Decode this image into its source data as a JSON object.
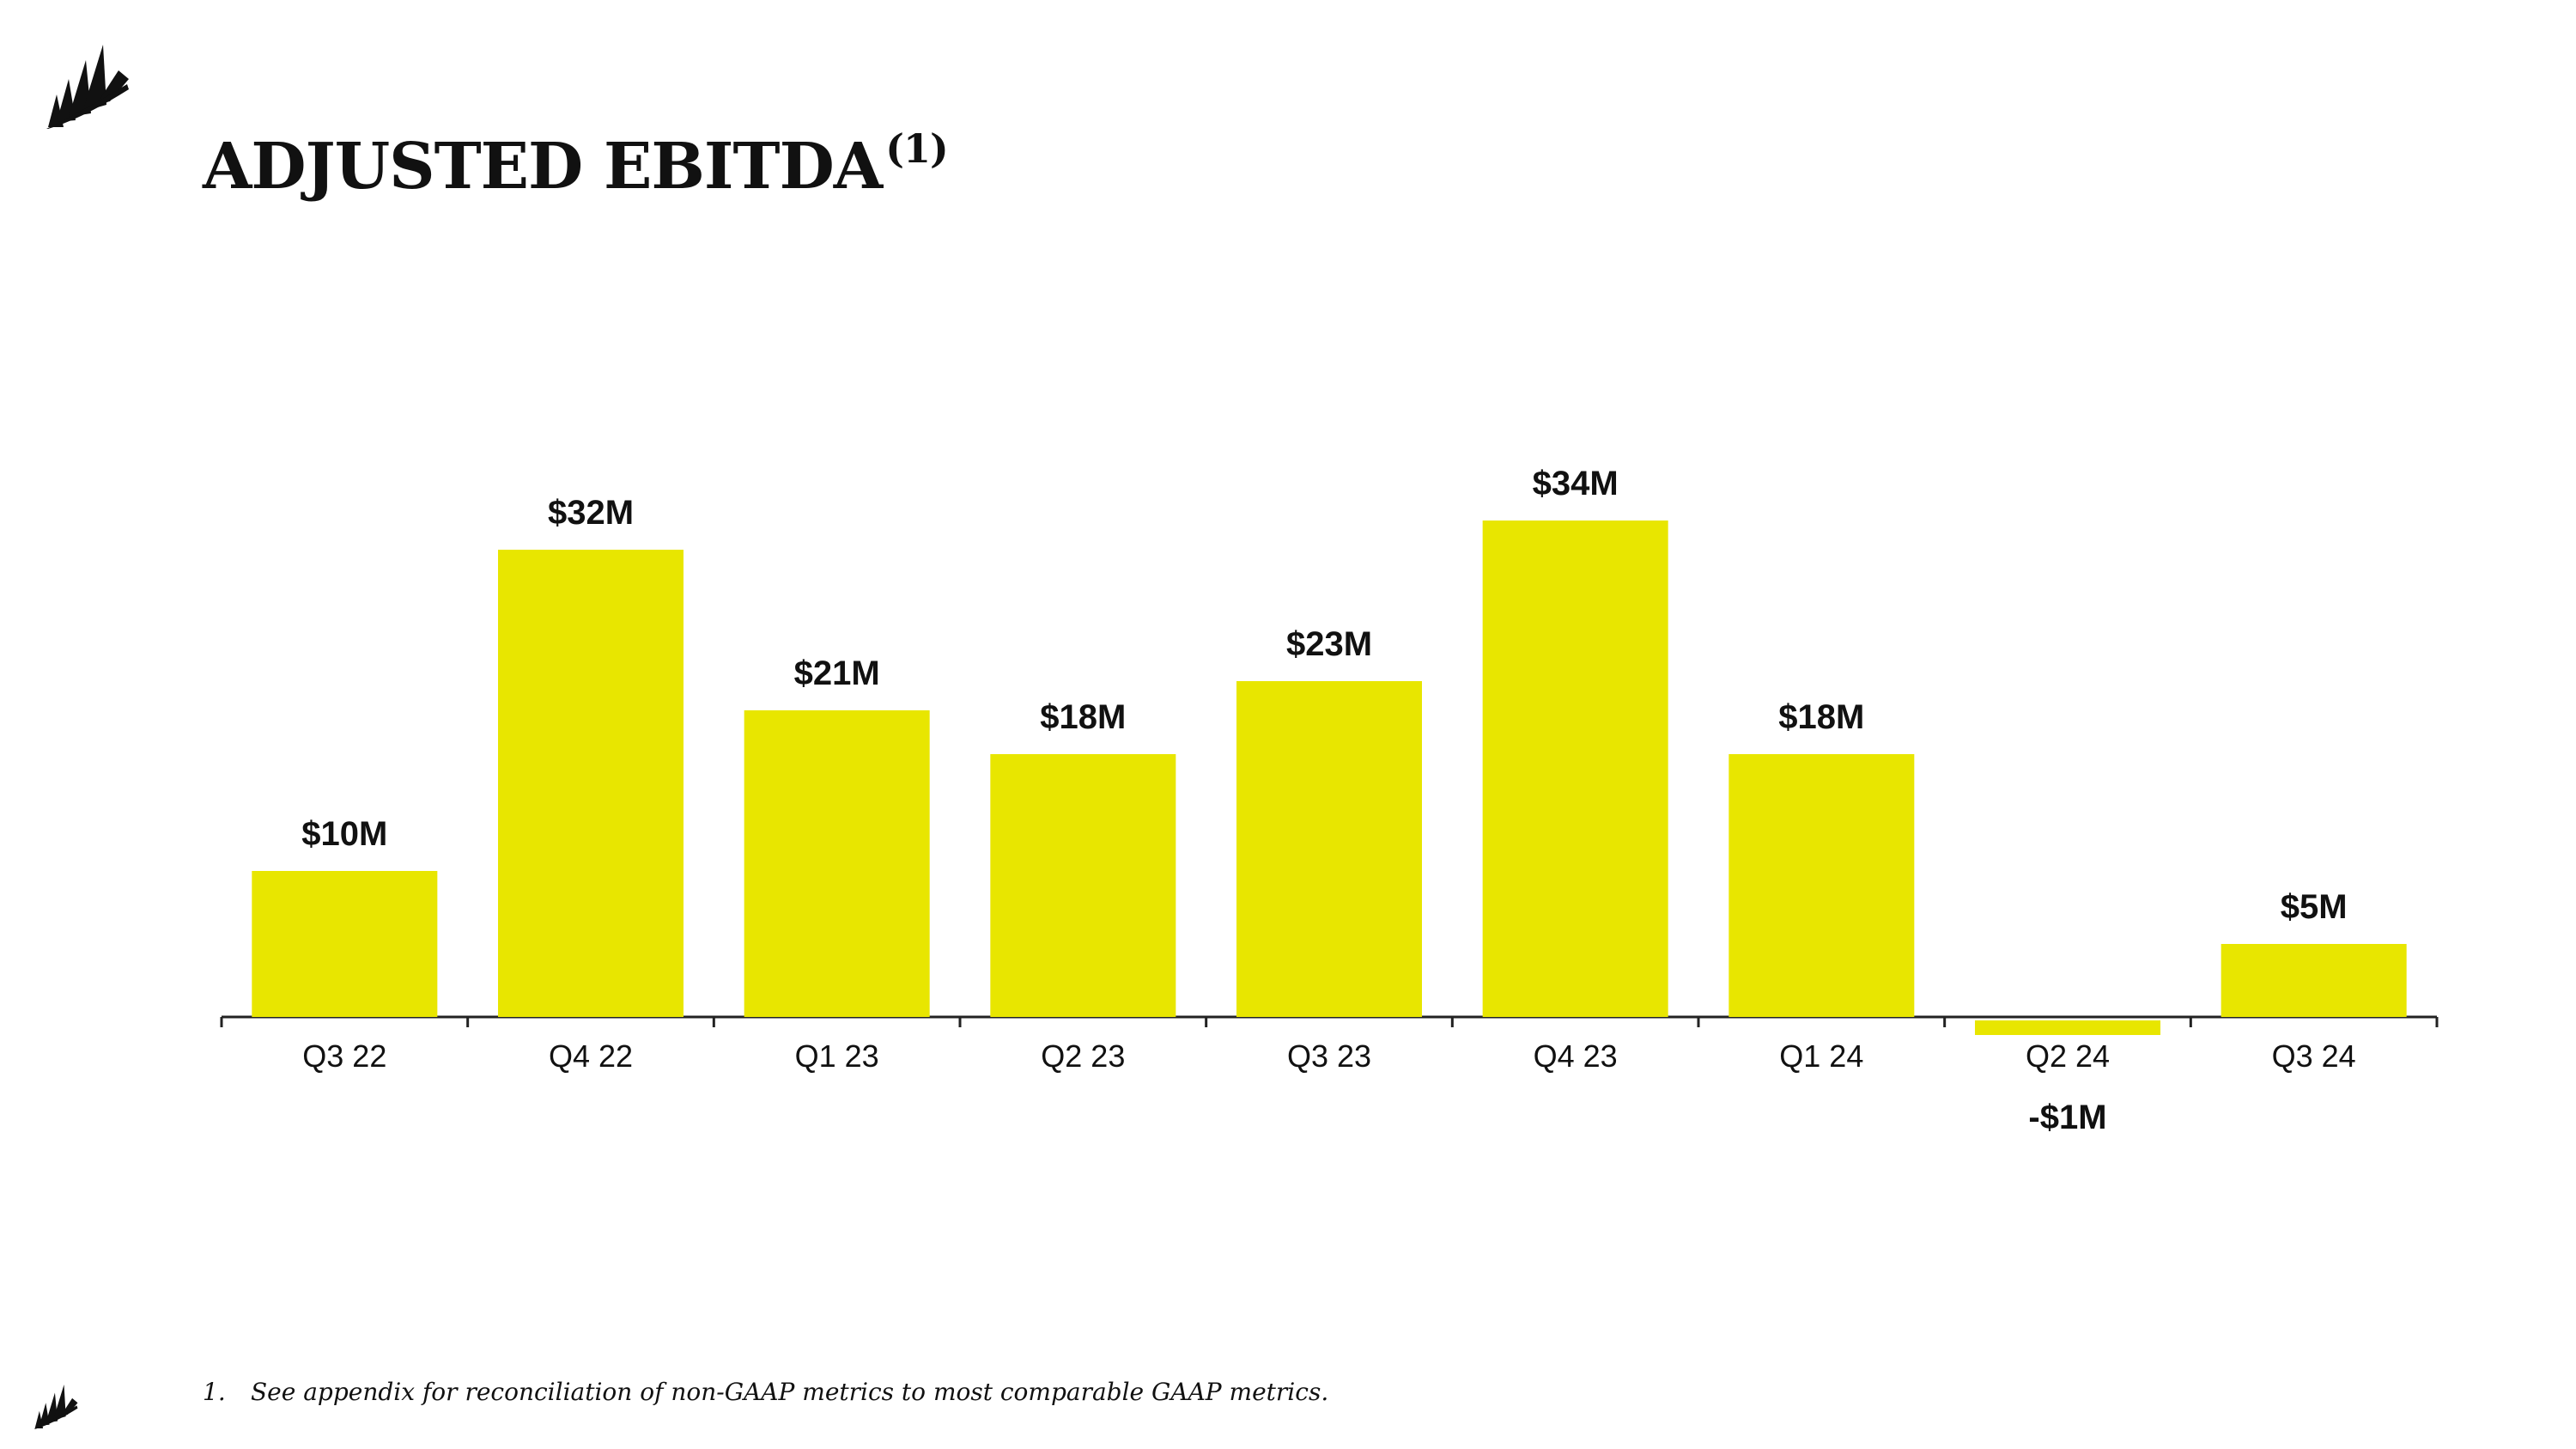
{
  "title": {
    "main": "ADJUSTED EBITDA",
    "superscript": "(1)"
  },
  "footnote": {
    "number": "1.",
    "text": "See appendix for reconciliation of non-GAAP metrics to most comparable GAAP metrics."
  },
  "colors": {
    "bar": "#e8e600",
    "text": "#111111",
    "axis": "#222222"
  },
  "logo": {
    "icon": "sails-logo-icon"
  },
  "chart_data": {
    "type": "bar",
    "title": "ADJUSTED EBITDA(1)",
    "xlabel": "",
    "ylabel": "",
    "categories": [
      "Q3 22",
      "Q4 22",
      "Q1 23",
      "Q2 23",
      "Q3 23",
      "Q4 23",
      "Q1 24",
      "Q2 24",
      "Q3 24"
    ],
    "values": [
      10,
      32,
      21,
      18,
      23,
      34,
      18,
      -1,
      5
    ],
    "data_labels": [
      "$10M",
      "$32M",
      "$21M",
      "$18M",
      "$23M",
      "$34M",
      "$18M",
      "-$1M",
      "$5M"
    ],
    "units": "$M",
    "ylim": [
      -1,
      34
    ],
    "grid": false,
    "legend": "none"
  }
}
